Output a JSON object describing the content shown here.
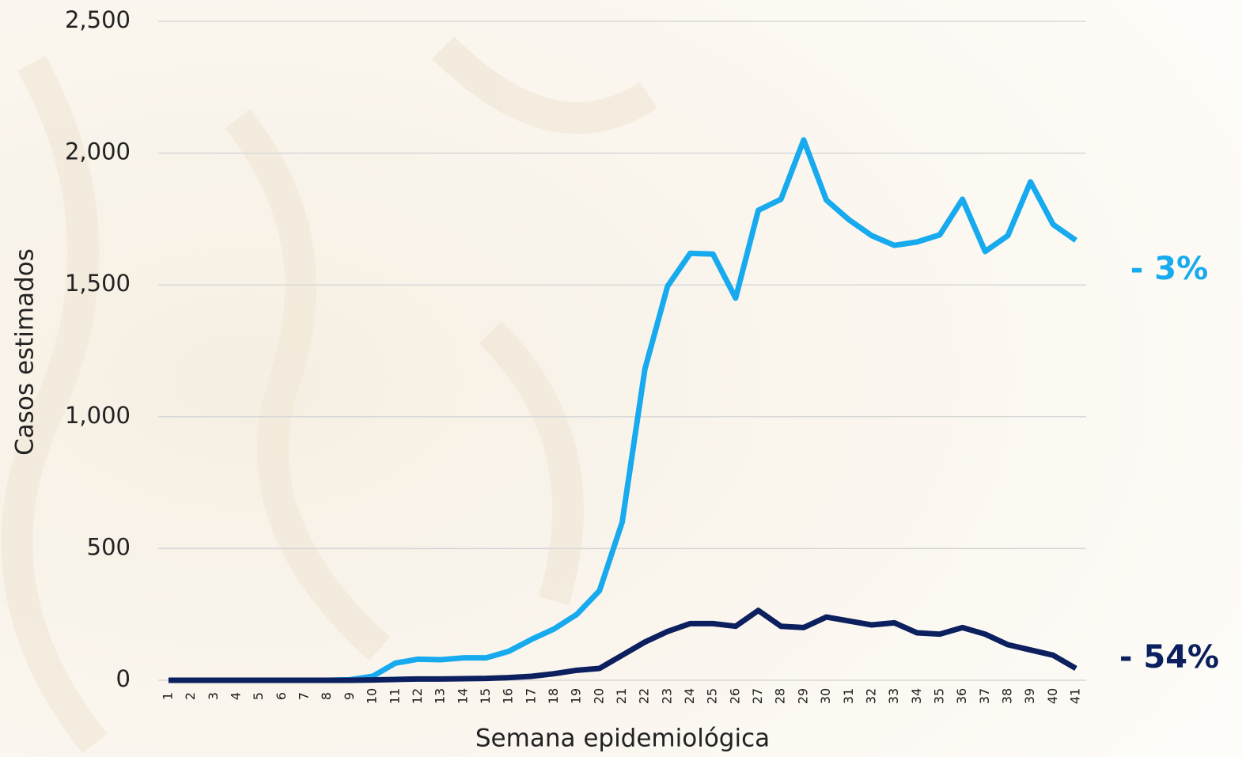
{
  "chart_data": {
    "type": "line",
    "x_label": "Semana epidemiológica",
    "y_label": "Casos estimados",
    "categories": [
      "1",
      "2",
      "3",
      "4",
      "5",
      "6",
      "7",
      "8",
      "9",
      "10",
      "11",
      "12",
      "13",
      "14",
      "15",
      "16",
      "17",
      "18",
      "19",
      "20",
      "21",
      "22",
      "23",
      "24",
      "25",
      "26",
      "27",
      "28",
      "29",
      "30",
      "31",
      "32",
      "33",
      "34",
      "35",
      "36",
      "37",
      "38",
      "39",
      "40",
      "41"
    ],
    "series": [
      {
        "color": "#17aaee",
        "values": [
          0,
          0,
          0,
          0,
          0,
          0,
          0,
          0,
          2,
          15,
          65,
          80,
          78,
          85,
          85,
          110,
          155,
          195,
          250,
          340,
          600,
          1180,
          1495,
          1620,
          1617,
          1450,
          1783,
          1825,
          2050,
          1822,
          1747,
          1687,
          1650,
          1663,
          1690,
          1825,
          1627,
          1687,
          1891,
          1729,
          1669
        ],
        "annotation": "- 3%"
      },
      {
        "color": "#0c1f5e",
        "values": [
          0,
          0,
          0,
          0,
          0,
          0,
          0,
          0,
          0,
          1,
          3,
          5,
          5,
          6,
          7,
          10,
          15,
          25,
          38,
          45,
          95,
          145,
          185,
          215,
          215,
          205,
          265,
          205,
          200,
          240,
          225,
          210,
          218,
          180,
          175,
          200,
          175,
          135,
          115,
          95,
          45
        ],
        "annotation": "- 54%"
      }
    ],
    "ylim": [
      0,
      2500
    ],
    "yticks": [
      0,
      500,
      {
        "value": 1000,
        "label": "1,000"
      },
      {
        "value": 1500,
        "label": "1,500"
      },
      {
        "value": 2000,
        "label": "2,000"
      },
      {
        "value": 2500,
        "label": "2,500"
      }
    ],
    "grid": true
  }
}
